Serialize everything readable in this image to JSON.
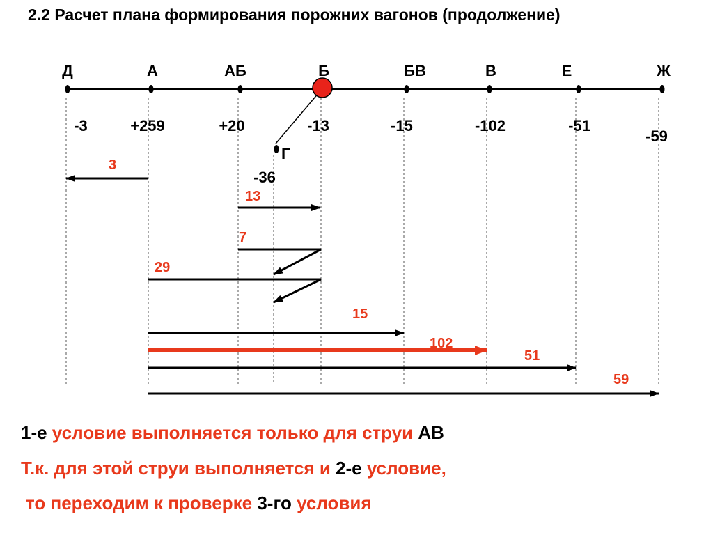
{
  "title": "2.2 Расчет плана формирования порожних вагонов (продолжение)",
  "colors": {
    "red": "#e8391c",
    "black": "#000000",
    "highlight_fill": "#e8231a"
  },
  "stations": [
    {
      "id": "d",
      "name": "Д",
      "balance": "-3"
    },
    {
      "id": "a",
      "name": "А",
      "balance": "+259"
    },
    {
      "id": "ab",
      "name": "АБ",
      "balance": "+20"
    },
    {
      "id": "b",
      "name": "Б",
      "balance": "-13"
    },
    {
      "id": "bv",
      "name": "БВ",
      "balance": "-15"
    },
    {
      "id": "v",
      "name": "В",
      "balance": "-102"
    },
    {
      "id": "e",
      "name": "Е",
      "balance": "-51"
    },
    {
      "id": "zh",
      "name": "Ж",
      "balance": "-59"
    }
  ],
  "branch": {
    "name": "Г",
    "balance": "-36",
    "attached_to": "Б"
  },
  "flows": [
    {
      "label": "3",
      "from": "А",
      "to": "Д",
      "color": "black"
    },
    {
      "label": "13",
      "from": "АБ",
      "to": "Б",
      "color": "black"
    },
    {
      "label": "7",
      "from": "АБ",
      "to": "Г",
      "color": "black",
      "via": "Б"
    },
    {
      "label": "29",
      "from": "А",
      "to": "Г",
      "color": "black",
      "via": "Б"
    },
    {
      "label": "15",
      "from": "А",
      "to": "БВ",
      "color": "black"
    },
    {
      "label": "102",
      "from": "А",
      "to": "В",
      "color": "red"
    },
    {
      "label": "51",
      "from": "А",
      "to": "Е",
      "color": "black"
    },
    {
      "label": "59",
      "from": "А",
      "to": "Ж",
      "color": "black"
    }
  ],
  "conditions": {
    "line1": {
      "p1": "1-е",
      "p2": " условие выполняется только для струи ",
      "p3": "АВ"
    },
    "line2": {
      "p1": "Т.к. для этой струи выполняется и ",
      "p2": "2-е",
      "p3": " условие,"
    },
    "line3": {
      "p1": "то переходим к проверке ",
      "p2": "3-го",
      "p3": " условия"
    }
  }
}
